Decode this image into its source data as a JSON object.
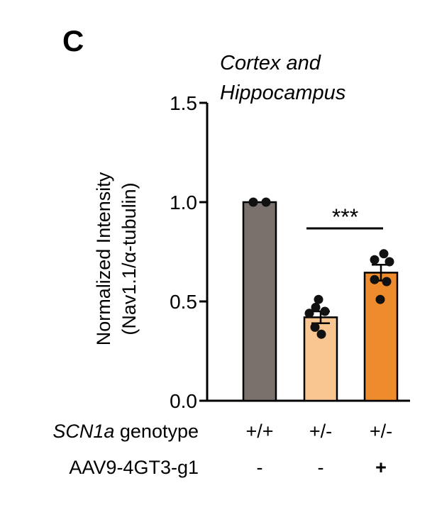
{
  "panel_label": "C",
  "chart_data": {
    "type": "bar",
    "title_lines": [
      "Cortex and",
      "Hippocampus"
    ],
    "ylabel_lines": [
      "Normalized Intensity",
      "(Nav1.1/α-tubulin)"
    ],
    "ylim": [
      0,
      1.5
    ],
    "yticks": [
      0.0,
      0.5,
      1.0,
      1.5
    ],
    "ytick_labels": [
      "0.0",
      "0.5",
      "1.0",
      "1.5"
    ],
    "row_labels": [
      {
        "italic": "SCN1a",
        "rest": " genotype",
        "values": [
          "+/+",
          "+/-",
          "+/-"
        ]
      },
      {
        "italic": "",
        "rest": "AAV9-4GT3-g1",
        "values": [
          "-",
          "-",
          "+"
        ]
      }
    ],
    "bars": [
      {
        "value": 1.0,
        "sem": 0,
        "color": "#7b716c",
        "points": [
          1.0,
          1.0
        ]
      },
      {
        "value": 0.42,
        "sem": 0.03,
        "color": "#f9c590",
        "points": [
          0.51,
          0.47,
          0.44,
          0.45,
          0.37,
          0.335
        ]
      },
      {
        "value": 0.645,
        "sem": 0.04,
        "color": "#ee8b2c",
        "points": [
          0.71,
          0.74,
          0.7,
          0.61,
          0.6,
          0.51
        ]
      }
    ],
    "significance": {
      "between": [
        1,
        2
      ],
      "label": "***"
    }
  }
}
